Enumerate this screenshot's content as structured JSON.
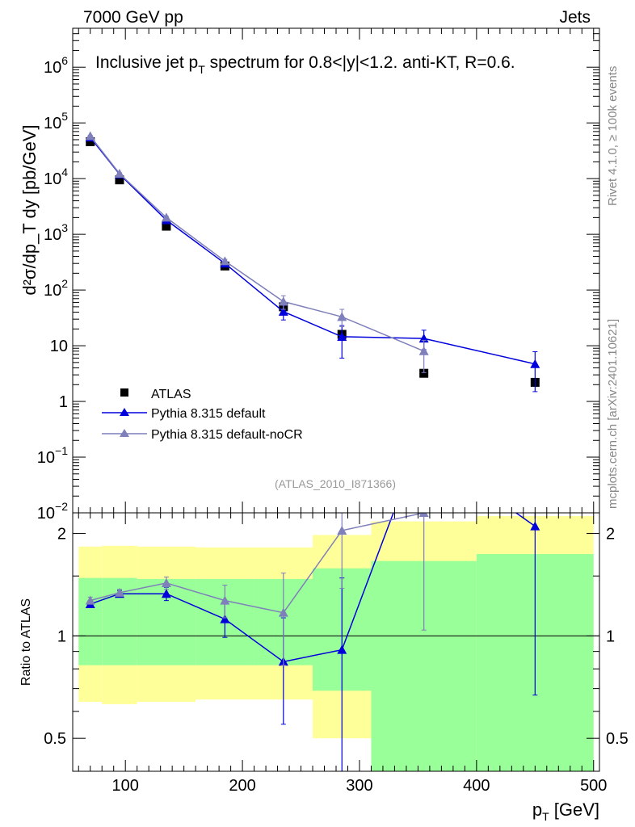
{
  "header": {
    "left": "7000 GeV pp",
    "right": "Jets"
  },
  "side_labels": {
    "rivet": "Rivet 4.1.0, ≥ 100k events",
    "mcplots": "mcplots.cern.ch [arXiv:2401.10621]"
  },
  "chart_data": [
    {
      "type": "scatter",
      "name": "main",
      "title_parts": {
        "a": "Inclusive jet p",
        "sub": "T",
        "b": " spectrum for 0.8<|y|<1.2.  anti-KT, R=0.6."
      },
      "ylabel_text": "d²σ/dp_T dy [pb/GeV]",
      "yscale": "log",
      "xlim": [
        55,
        505
      ],
      "ylim": [
        0.01,
        5000000
      ],
      "yticks": [
        {
          "v": 1000000,
          "label": "10",
          "sup": "6"
        },
        {
          "v": 100000,
          "label": "10",
          "sup": "5"
        },
        {
          "v": 10000,
          "label": "10",
          "sup": "4"
        },
        {
          "v": 1000,
          "label": "10",
          "sup": "3"
        },
        {
          "v": 100,
          "label": "10",
          "sup": "2"
        },
        {
          "v": 10,
          "label": "10",
          "sup": ""
        },
        {
          "v": 1,
          "label": "1",
          "sup": ""
        },
        {
          "v": 0.1,
          "label": "10",
          "sup": "−1"
        },
        {
          "v": 0.01,
          "label": "10",
          "sup": "−2"
        }
      ],
      "watermark": "(ATLAS_2010_I871366)",
      "legend": [
        "ATLAS",
        "Pythia 8.315 default",
        "Pythia 8.315 default-noCR"
      ],
      "series": [
        {
          "name": "ATLAS",
          "color": "#000000",
          "marker": "square",
          "points": [
            {
              "x": 70,
              "y": 46000
            },
            {
              "x": 95,
              "y": 9500
            },
            {
              "x": 135,
              "y": 1400
            },
            {
              "x": 185,
              "y": 270
            },
            {
              "x": 235,
              "y": 50
            },
            {
              "x": 285,
              "y": 16
            },
            {
              "x": 355,
              "y": 3.2
            },
            {
              "x": 450,
              "y": 2.2
            }
          ]
        },
        {
          "name": "Pythia 8.315 default",
          "color": "#0000dd",
          "marker": "triangle",
          "points": [
            {
              "x": 70,
              "y": 55000,
              "lo": 53000,
              "hi": 57000
            },
            {
              "x": 95,
              "y": 12000,
              "lo": 11600,
              "hi": 12400
            },
            {
              "x": 135,
              "y": 1800,
              "lo": 1720,
              "hi": 1880
            },
            {
              "x": 185,
              "y": 300,
              "lo": 280,
              "hi": 320
            },
            {
              "x": 235,
              "y": 41,
              "lo": 29,
              "hi": 53
            },
            {
              "x": 285,
              "y": 14.5,
              "lo": 6,
              "hi": 23
            },
            {
              "x": 355,
              "y": 13.5,
              "lo": 8.5,
              "hi": 19
            },
            {
              "x": 450,
              "y": 4.7,
              "lo": 1.5,
              "hi": 7.8
            }
          ]
        },
        {
          "name": "Pythia 8.315 default-noCR",
          "color": "#7f7fbb",
          "marker": "triangle",
          "points": [
            {
              "x": 70,
              "y": 58000,
              "lo": 56000,
              "hi": 60000
            },
            {
              "x": 95,
              "y": 12300,
              "lo": 11900,
              "hi": 12700
            },
            {
              "x": 135,
              "y": 2000,
              "lo": 1900,
              "hi": 2100
            },
            {
              "x": 185,
              "y": 330,
              "lo": 305,
              "hi": 355
            },
            {
              "x": 235,
              "y": 62,
              "lo": 45,
              "hi": 79
            },
            {
              "x": 285,
              "y": 33,
              "lo": 22,
              "hi": 45
            },
            {
              "x": 355,
              "y": 8,
              "lo": 3.3,
              "hi": 12.5
            }
          ]
        }
      ]
    },
    {
      "type": "scatter",
      "name": "ratio",
      "ylabel": "Ratio to ATLAS",
      "xlabel_parts": {
        "a": "p",
        "sub": "T",
        "b": " [GeV]"
      },
      "yscale": "log",
      "xlim": [
        55,
        505
      ],
      "ylim": [
        0.4,
        2.3
      ],
      "xticks": [
        100,
        200,
        300,
        400,
        500
      ],
      "yticks": [
        {
          "v": 0.5,
          "label": "0.5"
        },
        {
          "v": 1,
          "label": "1"
        },
        {
          "v": 2,
          "label": "2"
        }
      ],
      "bands": [
        {
          "x0": 60,
          "x1": 80,
          "yellow": [
            0.64,
            1.83
          ],
          "green": [
            0.82,
            1.48
          ]
        },
        {
          "x0": 80,
          "x1": 110,
          "yellow": [
            0.63,
            1.84
          ],
          "green": [
            0.82,
            1.48
          ]
        },
        {
          "x0": 110,
          "x1": 160,
          "yellow": [
            0.64,
            1.83
          ],
          "green": [
            0.82,
            1.47
          ]
        },
        {
          "x0": 160,
          "x1": 210,
          "yellow": [
            0.65,
            1.82
          ],
          "green": [
            0.82,
            1.47
          ]
        },
        {
          "x0": 210,
          "x1": 260,
          "yellow": [
            0.65,
            1.82
          ],
          "green": [
            0.82,
            1.47
          ]
        },
        {
          "x0": 260,
          "x1": 310,
          "yellow": [
            0.5,
            1.98
          ],
          "green": [
            0.69,
            1.58
          ]
        },
        {
          "x0": 310,
          "x1": 400,
          "yellow": [
            0.35,
            2.17
          ],
          "green": [
            0.3,
            1.66
          ]
        },
        {
          "x0": 400,
          "x1": 500,
          "yellow": [
            0.35,
            2.25
          ],
          "green": [
            0.3,
            1.74
          ]
        }
      ],
      "series": [
        {
          "name": "Pythia 8.315 default",
          "color": "#0000dd",
          "points": [
            {
              "x": 70,
              "y": 1.24,
              "lo": 1.21,
              "hi": 1.27
            },
            {
              "x": 95,
              "y": 1.33,
              "lo": 1.3,
              "hi": 1.36
            },
            {
              "x": 135,
              "y": 1.33,
              "lo": 1.27,
              "hi": 1.39
            },
            {
              "x": 185,
              "y": 1.12,
              "lo": 0.99,
              "hi": 1.25
            },
            {
              "x": 235,
              "y": 0.84,
              "lo": 0.55,
              "hi": 1.13
            },
            {
              "x": 285,
              "y": 0.91,
              "lo": 0.38,
              "hi": 1.48
            },
            {
              "x": 330,
              "y": 2.35
            },
            {
              "x": 430,
              "y": 2.35
            },
            {
              "x": 450,
              "y": 2.1,
              "lo": 0.67,
              "hi": 3.5
            }
          ]
        },
        {
          "name": "Pythia 8.315 default-noCR",
          "color": "#7f7fbb",
          "points": [
            {
              "x": 70,
              "y": 1.27,
              "lo": 1.24,
              "hi": 1.3
            },
            {
              "x": 95,
              "y": 1.34,
              "lo": 1.31,
              "hi": 1.37
            },
            {
              "x": 135,
              "y": 1.43,
              "lo": 1.37,
              "hi": 1.49
            },
            {
              "x": 185,
              "y": 1.27,
              "lo": 1.13,
              "hi": 1.41
            },
            {
              "x": 235,
              "y": 1.17,
              "lo": 0.82,
              "hi": 1.53
            },
            {
              "x": 285,
              "y": 2.04,
              "lo": 1.38,
              "hi": 2.7
            },
            {
              "x": 355,
              "y": 2.3,
              "lo": 1.04,
              "hi": 3.6
            }
          ]
        }
      ]
    }
  ]
}
